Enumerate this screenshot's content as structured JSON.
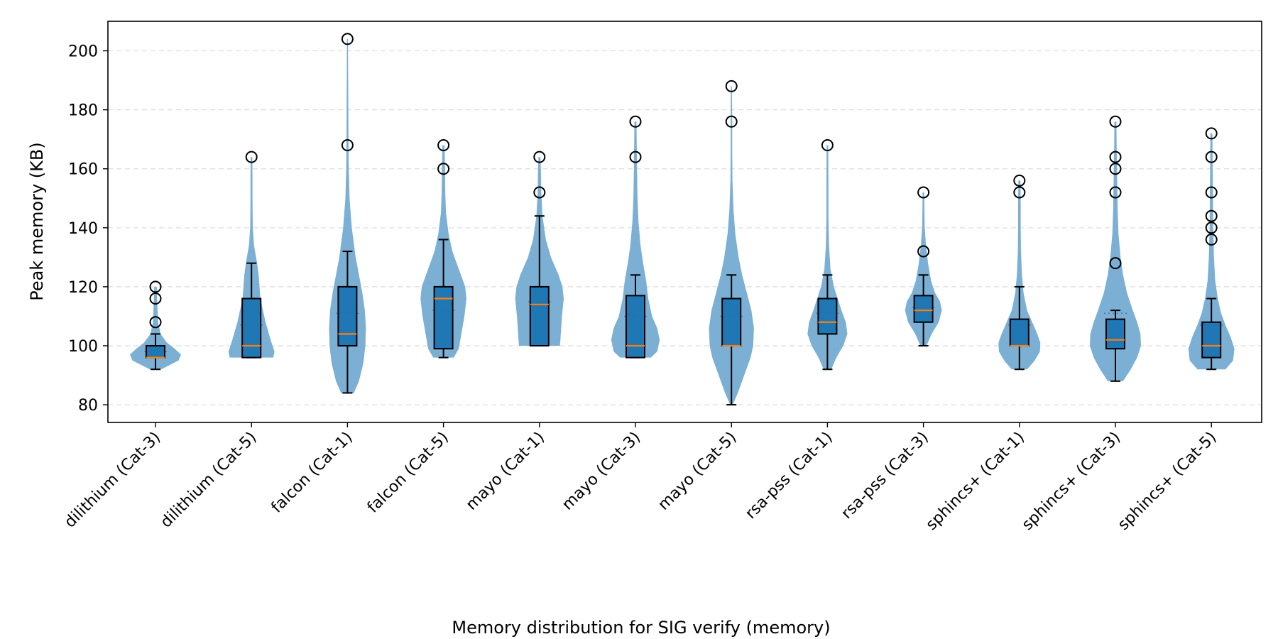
{
  "chart_data": {
    "type": "violin+box",
    "xlabel": "Memory distribution for SIG verify (memory)",
    "ylabel": "Peak memory (KB)",
    "ylim": [
      74,
      210
    ],
    "yticks": [
      80,
      100,
      120,
      140,
      160,
      180,
      200
    ],
    "grid": "horizontal dashed",
    "colors": {
      "violin": "#7BAFD4",
      "box": "#1F77B4",
      "median": "#FF7F0E",
      "mean_dot": "#2B6CA3",
      "grid": "#dddddd"
    },
    "categories": [
      "dilithium (Cat-3)",
      "dilithium (Cat-5)",
      "falcon (Cat-1)",
      "falcon (Cat-5)",
      "mayo (Cat-1)",
      "mayo (Cat-3)",
      "mayo (Cat-5)",
      "rsa-pss (Cat-1)",
      "rsa-pss (Cat-3)",
      "sphincs+ (Cat-1)",
      "sphincs+ (Cat-3)",
      "sphincs+ (Cat-5)"
    ],
    "box": [
      {
        "whislo": 92,
        "q1": 96,
        "med": 96,
        "q3": 100,
        "whishi": 104,
        "mean": 98,
        "fliers": [
          108,
          116,
          120
        ]
      },
      {
        "whislo": 96,
        "q1": 96,
        "med": 100,
        "q3": 116,
        "whishi": 128,
        "mean": 107,
        "fliers": [
          164
        ]
      },
      {
        "whislo": 84,
        "q1": 100,
        "med": 104,
        "q3": 120,
        "whishi": 132,
        "mean": 111,
        "fliers": [
          168,
          204
        ]
      },
      {
        "whislo": 96,
        "q1": 99,
        "med": 116,
        "q3": 120,
        "whishi": 136,
        "mean": 112,
        "fliers": [
          160,
          168
        ]
      },
      {
        "whislo": 100,
        "q1": 100,
        "med": 114,
        "q3": 120,
        "whishi": 144,
        "mean": 115,
        "fliers": [
          152,
          164
        ]
      },
      {
        "whislo": 96,
        "q1": 96,
        "med": 100,
        "q3": 117,
        "whishi": 124,
        "mean": 110,
        "fliers": [
          164,
          176
        ]
      },
      {
        "whislo": 80,
        "q1": 100,
        "med": 100,
        "q3": 116,
        "whishi": 124,
        "mean": 110,
        "fliers": [
          176,
          188
        ]
      },
      {
        "whislo": 92,
        "q1": 104,
        "med": 108,
        "q3": 116,
        "whishi": 124,
        "mean": 111,
        "fliers": [
          168
        ]
      },
      {
        "whislo": 100,
        "q1": 108,
        "med": 112,
        "q3": 117,
        "whishi": 124,
        "mean": 113,
        "fliers": [
          132,
          152
        ]
      },
      {
        "whislo": 92,
        "q1": 100,
        "med": 100,
        "q3": 109,
        "whishi": 120,
        "mean": 107,
        "fliers": [
          152,
          156
        ]
      },
      {
        "whislo": 88,
        "q1": 99,
        "med": 102,
        "q3": 109,
        "whishi": 112,
        "mean": 111,
        "fliers": [
          128,
          152,
          160,
          164,
          176
        ]
      },
      {
        "whislo": 92,
        "q1": 96,
        "med": 100,
        "q3": 108,
        "whishi": 116,
        "mean": 107,
        "fliers": [
          136,
          140,
          144,
          152,
          164,
          172
        ]
      }
    ],
    "violin": [
      {
        "min": 92,
        "max": 120,
        "profile": [
          [
            92,
            0.22
          ],
          [
            95,
            0.9
          ],
          [
            97,
            1.0
          ],
          [
            99,
            0.75
          ],
          [
            101,
            0.45
          ],
          [
            104,
            0.2
          ],
          [
            108,
            0.1
          ],
          [
            112,
            0.08
          ],
          [
            116,
            0.06
          ],
          [
            120,
            0.05
          ]
        ]
      },
      {
        "min": 96,
        "max": 164,
        "profile": [
          [
            96,
            0.85
          ],
          [
            98,
            0.9
          ],
          [
            102,
            0.75
          ],
          [
            108,
            0.55
          ],
          [
            116,
            0.35
          ],
          [
            124,
            0.28
          ],
          [
            128,
            0.22
          ],
          [
            134,
            0.1
          ],
          [
            140,
            0.05
          ],
          [
            150,
            0.04
          ],
          [
            158,
            0.04
          ],
          [
            164,
            0.03
          ]
        ]
      },
      {
        "min": 84,
        "max": 204,
        "profile": [
          [
            84,
            0.25
          ],
          [
            88,
            0.45
          ],
          [
            94,
            0.62
          ],
          [
            100,
            0.7
          ],
          [
            106,
            0.72
          ],
          [
            112,
            0.68
          ],
          [
            118,
            0.58
          ],
          [
            124,
            0.45
          ],
          [
            130,
            0.32
          ],
          [
            140,
            0.17
          ],
          [
            150,
            0.08
          ],
          [
            160,
            0.05
          ],
          [
            170,
            0.04
          ],
          [
            185,
            0.03
          ],
          [
            204,
            0.02
          ]
        ]
      },
      {
        "min": 96,
        "max": 168,
        "profile": [
          [
            96,
            0.4
          ],
          [
            99,
            0.6
          ],
          [
            104,
            0.7
          ],
          [
            110,
            0.82
          ],
          [
            116,
            0.9
          ],
          [
            120,
            0.85
          ],
          [
            126,
            0.6
          ],
          [
            132,
            0.35
          ],
          [
            138,
            0.2
          ],
          [
            145,
            0.1
          ],
          [
            152,
            0.07
          ],
          [
            160,
            0.06
          ],
          [
            168,
            0.04
          ]
        ]
      },
      {
        "min": 100,
        "max": 164,
        "profile": [
          [
            100,
            0.8
          ],
          [
            102,
            0.82
          ],
          [
            106,
            0.85
          ],
          [
            110,
            0.88
          ],
          [
            116,
            0.95
          ],
          [
            120,
            0.9
          ],
          [
            124,
            0.75
          ],
          [
            130,
            0.45
          ],
          [
            136,
            0.25
          ],
          [
            144,
            0.12
          ],
          [
            152,
            0.07
          ],
          [
            158,
            0.06
          ],
          [
            164,
            0.04
          ]
        ]
      },
      {
        "min": 96,
        "max": 176,
        "profile": [
          [
            96,
            0.6
          ],
          [
            98,
            0.85
          ],
          [
            102,
            0.95
          ],
          [
            106,
            0.85
          ],
          [
            110,
            0.65
          ],
          [
            116,
            0.5
          ],
          [
            122,
            0.42
          ],
          [
            128,
            0.3
          ],
          [
            134,
            0.2
          ],
          [
            142,
            0.12
          ],
          [
            150,
            0.08
          ],
          [
            160,
            0.06
          ],
          [
            168,
            0.05
          ],
          [
            176,
            0.04
          ]
        ]
      },
      {
        "min": 80,
        "max": 188,
        "profile": [
          [
            80,
            0.05
          ],
          [
            84,
            0.25
          ],
          [
            90,
            0.5
          ],
          [
            96,
            0.75
          ],
          [
            100,
            0.85
          ],
          [
            106,
            0.88
          ],
          [
            112,
            0.78
          ],
          [
            118,
            0.6
          ],
          [
            124,
            0.42
          ],
          [
            130,
            0.28
          ],
          [
            138,
            0.15
          ],
          [
            146,
            0.08
          ],
          [
            156,
            0.04
          ],
          [
            166,
            0.03
          ],
          [
            176,
            0.03
          ],
          [
            188,
            0.02
          ]
        ]
      },
      {
        "min": 92,
        "max": 168,
        "profile": [
          [
            92,
            0.15
          ],
          [
            96,
            0.35
          ],
          [
            100,
            0.62
          ],
          [
            104,
            0.78
          ],
          [
            108,
            0.72
          ],
          [
            112,
            0.55
          ],
          [
            116,
            0.4
          ],
          [
            120,
            0.25
          ],
          [
            126,
            0.12
          ],
          [
            134,
            0.06
          ],
          [
            144,
            0.04
          ],
          [
            156,
            0.04
          ],
          [
            168,
            0.03
          ]
        ]
      },
      {
        "min": 100,
        "max": 152,
        "profile": [
          [
            100,
            0.12
          ],
          [
            104,
            0.32
          ],
          [
            108,
            0.6
          ],
          [
            112,
            0.72
          ],
          [
            115,
            0.65
          ],
          [
            118,
            0.45
          ],
          [
            122,
            0.3
          ],
          [
            128,
            0.18
          ],
          [
            134,
            0.1
          ],
          [
            140,
            0.05
          ],
          [
            146,
            0.04
          ],
          [
            152,
            0.03
          ]
        ]
      },
      {
        "min": 92,
        "max": 156,
        "profile": [
          [
            92,
            0.3
          ],
          [
            95,
            0.6
          ],
          [
            98,
            0.8
          ],
          [
            101,
            0.82
          ],
          [
            104,
            0.7
          ],
          [
            108,
            0.5
          ],
          [
            112,
            0.3
          ],
          [
            118,
            0.16
          ],
          [
            124,
            0.1
          ],
          [
            132,
            0.06
          ],
          [
            140,
            0.05
          ],
          [
            148,
            0.05
          ],
          [
            156,
            0.04
          ]
        ]
      },
      {
        "min": 88,
        "max": 176,
        "profile": [
          [
            88,
            0.3
          ],
          [
            92,
            0.6
          ],
          [
            96,
            0.85
          ],
          [
            100,
            1.0
          ],
          [
            104,
            0.98
          ],
          [
            108,
            0.85
          ],
          [
            112,
            0.68
          ],
          [
            118,
            0.45
          ],
          [
            124,
            0.3
          ],
          [
            130,
            0.2
          ],
          [
            138,
            0.12
          ],
          [
            146,
            0.09
          ],
          [
            156,
            0.07
          ],
          [
            166,
            0.05
          ],
          [
            176,
            0.04
          ]
        ]
      },
      {
        "min": 92,
        "max": 172,
        "profile": [
          [
            92,
            0.55
          ],
          [
            95,
            0.85
          ],
          [
            99,
            0.9
          ],
          [
            103,
            0.75
          ],
          [
            107,
            0.55
          ],
          [
            111,
            0.38
          ],
          [
            116,
            0.25
          ],
          [
            122,
            0.15
          ],
          [
            130,
            0.1
          ],
          [
            140,
            0.07
          ],
          [
            150,
            0.06
          ],
          [
            160,
            0.05
          ],
          [
            172,
            0.04
          ]
        ]
      }
    ]
  }
}
